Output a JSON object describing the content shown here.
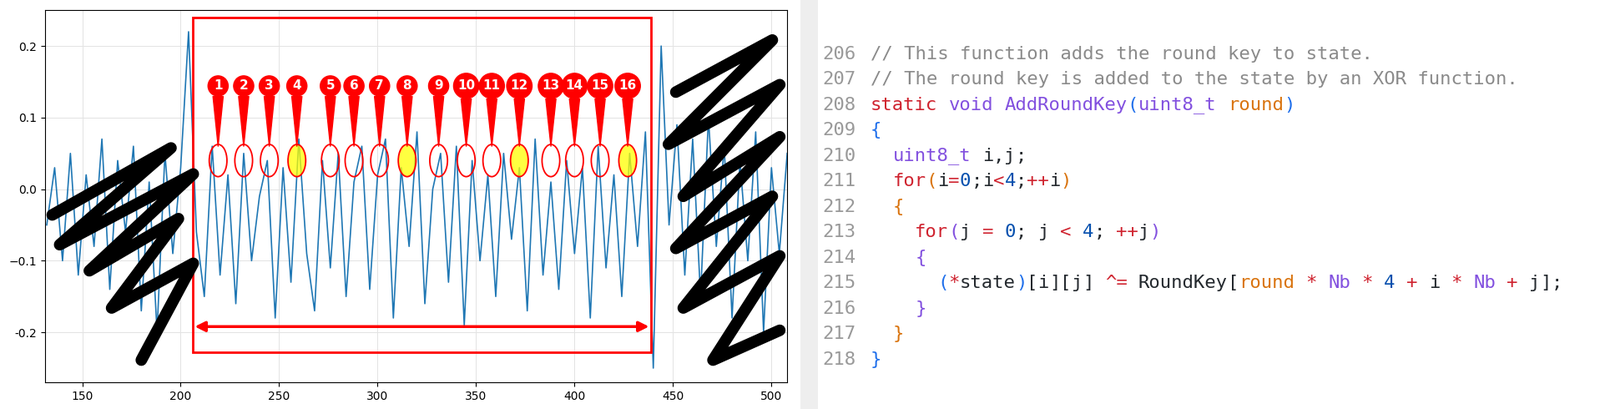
{
  "chart_data": {
    "type": "line",
    "color": "#1f77b4",
    "grid": true,
    "x": [
      132,
      136,
      140,
      144,
      148,
      152,
      156,
      160,
      164,
      168,
      172,
      176,
      180,
      184,
      188,
      192,
      196,
      200,
      204,
      208,
      212,
      216,
      220,
      224,
      228,
      232,
      236,
      240,
      244,
      248,
      252,
      256,
      260,
      264,
      268,
      272,
      276,
      280,
      284,
      288,
      292,
      296,
      300,
      304,
      308,
      312,
      316,
      320,
      324,
      328,
      332,
      336,
      340,
      344,
      348,
      352,
      356,
      360,
      364,
      368,
      372,
      376,
      380,
      384,
      388,
      392,
      396,
      400,
      404,
      408,
      412,
      416,
      420,
      424,
      428,
      432,
      436,
      440,
      444,
      448,
      452,
      456,
      460,
      464,
      468,
      472,
      476,
      480,
      484,
      488,
      492,
      496,
      500,
      504,
      508
    ],
    "values": [
      -0.05,
      0.03,
      -0.1,
      0.05,
      -0.12,
      0.02,
      -0.08,
      0.07,
      -0.14,
      0.04,
      -0.06,
      0.06,
      -0.17,
      0.01,
      -0.2,
      0.05,
      -0.09,
      0.03,
      0.22,
      -0.06,
      -0.15,
      0.06,
      -0.12,
      0.02,
      -0.16,
      0.05,
      -0.1,
      -0.01,
      0.04,
      -0.18,
      0.03,
      -0.13,
      0.07,
      -0.09,
      -0.17,
      0.04,
      -0.11,
      0.05,
      -0.15,
      0.01,
      0.06,
      -0.14,
      0.02,
      0.07,
      -0.18,
      0.03,
      -0.08,
      0.08,
      -0.16,
      0.0,
      0.05,
      -0.13,
      0.06,
      -0.19,
      0.04,
      -0.1,
      0.02,
      -0.15,
      0.05,
      -0.07,
      0.03,
      -0.17,
      0.07,
      -0.12,
      0.01,
      -0.14,
      0.04,
      -0.09,
      0.03,
      -0.18,
      0.06,
      -0.11,
      0.02,
      -0.15,
      0.05,
      -0.08,
      0.08,
      -0.25,
      0.2,
      -0.05,
      0.09,
      -0.12,
      0.07,
      -0.15,
      0.1,
      -0.08,
      0.06,
      -0.18,
      0.04,
      -0.1,
      0.08,
      -0.2,
      0.03,
      -0.09,
      0.05
    ],
    "xlim": [
      131,
      508
    ],
    "ylim": [
      -0.27,
      0.25
    ],
    "xticks": [
      150,
      200,
      250,
      300,
      350,
      400,
      450,
      500
    ],
    "yticks": [
      -0.2,
      {
        "value": -0.1,
        "label": "−0.1"
      },
      {
        "value": 0,
        "label": "0.0"
      },
      0.1,
      0.2
    ],
    "region": [
      206,
      439
    ],
    "markers": [
      {
        "label": "1",
        "x": 219,
        "y": 0.04,
        "highlight": false
      },
      {
        "label": "2",
        "x": 232,
        "y": 0.04,
        "highlight": false
      },
      {
        "label": "3",
        "x": 245,
        "y": 0.04,
        "highlight": false
      },
      {
        "label": "4",
        "x": 259,
        "y": 0.04,
        "highlight": true
      },
      {
        "label": "5",
        "x": 276,
        "y": 0.04,
        "highlight": false
      },
      {
        "label": "6",
        "x": 288,
        "y": 0.04,
        "highlight": false
      },
      {
        "label": "7",
        "x": 301,
        "y": 0.04,
        "highlight": false
      },
      {
        "label": "8",
        "x": 315,
        "y": 0.04,
        "highlight": true
      },
      {
        "label": "9",
        "x": 331,
        "y": 0.04,
        "highlight": false
      },
      {
        "label": "10",
        "x": 345,
        "y": 0.04,
        "highlight": false
      },
      {
        "label": "11",
        "x": 358,
        "y": 0.04,
        "highlight": false
      },
      {
        "label": "12",
        "x": 372,
        "y": 0.04,
        "highlight": true
      },
      {
        "label": "13",
        "x": 388,
        "y": 0.04,
        "highlight": false
      },
      {
        "label": "14",
        "x": 400,
        "y": 0.04,
        "highlight": false
      },
      {
        "label": "15",
        "x": 413,
        "y": 0.04,
        "highlight": false
      },
      {
        "label": "16",
        "x": 427,
        "y": 0.04,
        "highlight": true
      }
    ]
  },
  "code": {
    "line_numbers": [
      206,
      207,
      208,
      209,
      210,
      211,
      212,
      213,
      214,
      215,
      216,
      217,
      218
    ],
    "lines": [
      "// This function adds the round key to state.",
      "// The round key is added to the state by an XOR function.",
      "static void AddRoundKey(uint8_t round)",
      "{",
      "  uint8_t i,j;",
      "  for(i=0;i<4;++i)",
      "  {",
      "    for(j = 0; j < 4; ++j)",
      "    {",
      "      (*state)[i][j] ^= RoundKey[round * Nb * 4 + i * Nb + j];",
      "    }",
      "  }",
      "}"
    ]
  }
}
